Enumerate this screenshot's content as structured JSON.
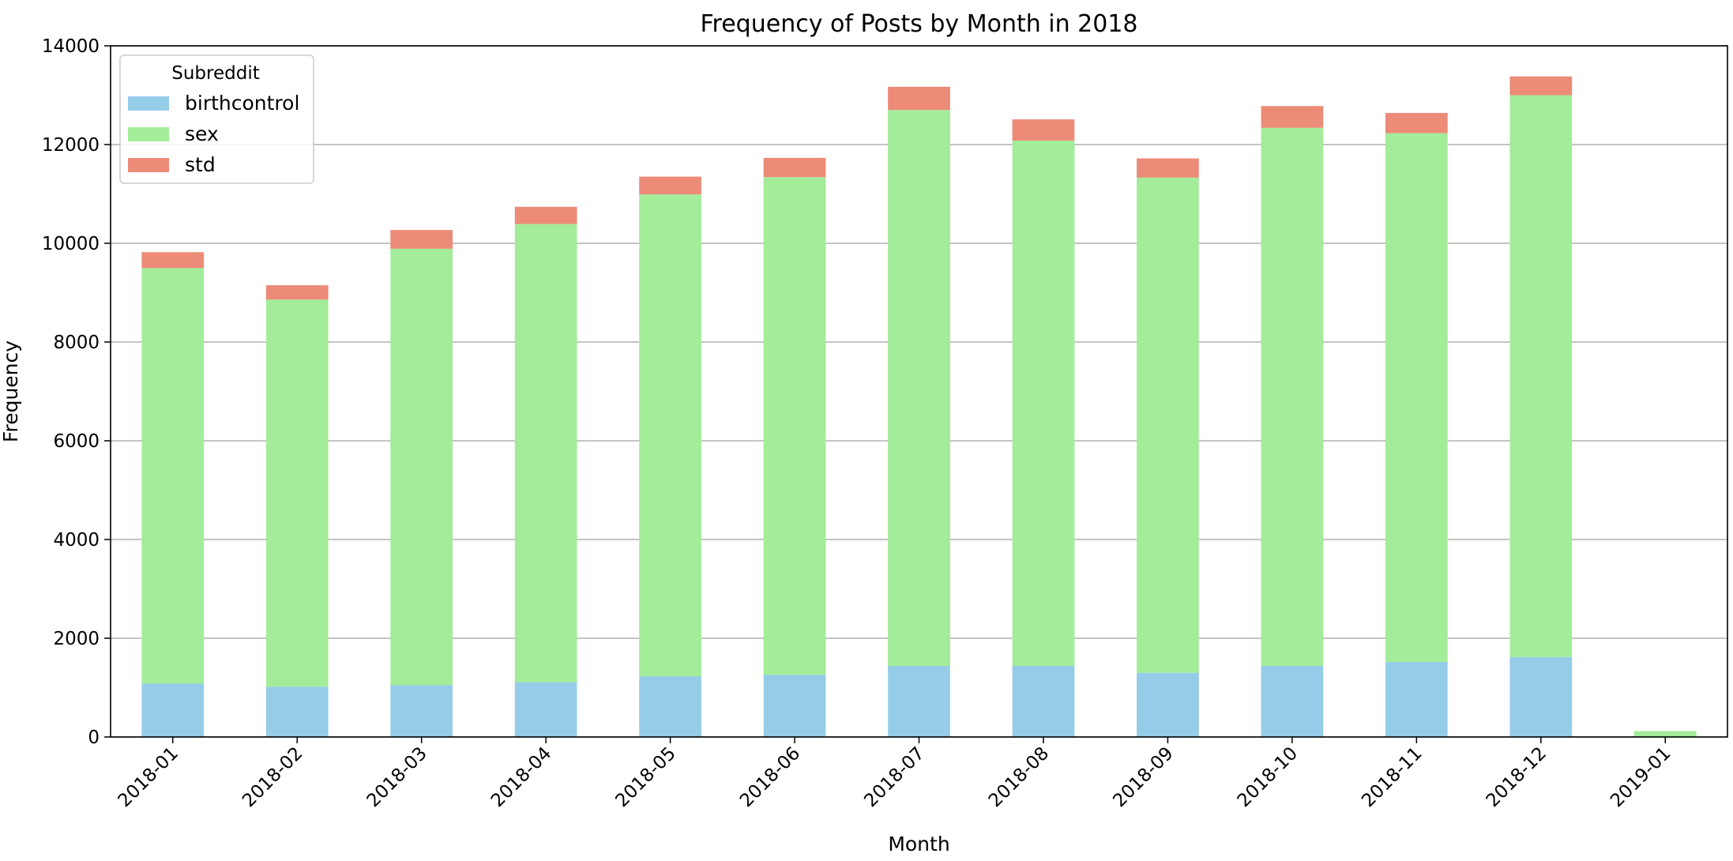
{
  "chart_data": {
    "type": "bar",
    "stacked": true,
    "title": "Frequency of Posts by Month in 2018",
    "xlabel": "Month",
    "ylabel": "Frequency",
    "ylim": [
      0,
      14000
    ],
    "yticks": [
      0,
      2000,
      4000,
      6000,
      8000,
      10000,
      12000,
      14000
    ],
    "grid": "y",
    "legend": {
      "title": "Subreddit",
      "placement": "top-left"
    },
    "categories": [
      "2018-01",
      "2018-02",
      "2018-03",
      "2018-04",
      "2018-05",
      "2018-06",
      "2018-07",
      "2018-08",
      "2018-09",
      "2018-10",
      "2018-11",
      "2018-12",
      "2019-01"
    ],
    "series": [
      {
        "name": "birthcontrol",
        "color": "#95cde8",
        "values": [
          1080,
          1020,
          1050,
          1110,
          1230,
          1260,
          1440,
          1440,
          1300,
          1440,
          1520,
          1620,
          0
        ]
      },
      {
        "name": "sex",
        "color": "#a3ec99",
        "values": [
          8420,
          7840,
          8840,
          9280,
          9760,
          10080,
          11260,
          10640,
          10030,
          10900,
          10710,
          11380,
          120
        ]
      },
      {
        "name": "std",
        "color": "#ec8b78",
        "values": [
          320,
          290,
          380,
          350,
          360,
          390,
          470,
          430,
          390,
          440,
          410,
          380,
          0
        ]
      }
    ]
  }
}
